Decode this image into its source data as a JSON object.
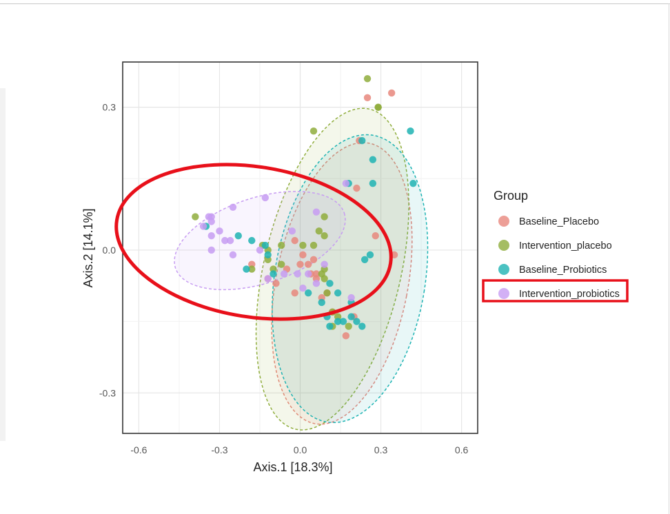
{
  "chart_data": {
    "type": "scatter",
    "title": "",
    "xlabel": "Axis.1   [18.3%]",
    "ylabel": "Axis.2   [14.1%]",
    "xlim": [
      -0.66,
      0.66
    ],
    "ylim": [
      -0.385,
      0.395
    ],
    "xticks": [
      -0.6,
      -0.3,
      0.0,
      0.3,
      0.6
    ],
    "xtick_labels": [
      "-0.6",
      "-0.3",
      "0.0",
      "0.3",
      "0.6"
    ],
    "yticks": [
      -0.3,
      0.0,
      0.3
    ],
    "ytick_labels": [
      "-0.3",
      "0.0",
      "0.3"
    ],
    "grid": true,
    "legend": {
      "title": "Group",
      "placement": "right",
      "highlighted": "Intervention_probiotics"
    },
    "series": [
      {
        "name": "Baseline_Placebo",
        "color": "#e8877d",
        "ellipse": {
          "cx": 0.155,
          "cy": -0.07,
          "rx": 0.245,
          "ry": 0.3,
          "angle_deg": 11
        },
        "points": [
          [
            0.25,
            0.32
          ],
          [
            0.34,
            0.33
          ],
          [
            0.22,
            0.23
          ],
          [
            0.21,
            0.13
          ],
          [
            0.28,
            0.03
          ],
          [
            0.35,
            -0.01
          ],
          [
            0.05,
            -0.02
          ],
          [
            0.01,
            -0.01
          ],
          [
            -0.02,
            0.02
          ],
          [
            0.04,
            -0.05
          ],
          [
            -0.18,
            -0.03
          ],
          [
            -0.12,
            -0.06
          ],
          [
            -0.09,
            -0.07
          ],
          [
            0.0,
            -0.03
          ],
          [
            0.03,
            -0.03
          ],
          [
            0.06,
            -0.05
          ],
          [
            -0.05,
            -0.04
          ],
          [
            0.1,
            -0.09
          ],
          [
            0.08,
            -0.1
          ],
          [
            0.2,
            -0.14
          ],
          [
            0.17,
            -0.18
          ],
          [
            -0.02,
            -0.09
          ],
          [
            0.12,
            -0.13
          ],
          [
            0.06,
            -0.06
          ]
        ]
      },
      {
        "name": "Intervention_placebo",
        "color": "#8fad3c",
        "ellipse": {
          "cx": 0.12,
          "cy": -0.04,
          "rx": 0.255,
          "ry": 0.345,
          "angle_deg": 13
        },
        "points": [
          [
            0.25,
            0.36
          ],
          [
            0.29,
            0.3
          ],
          [
            0.29,
            0.3
          ],
          [
            0.05,
            0.25
          ],
          [
            -0.39,
            0.07
          ],
          [
            0.07,
            0.04
          ],
          [
            0.09,
            0.07
          ],
          [
            0.09,
            0.03
          ],
          [
            0.05,
            0.01
          ],
          [
            0.01,
            0.01
          ],
          [
            -0.07,
            0.01
          ],
          [
            -0.12,
            0.0
          ],
          [
            -0.14,
            0.01
          ],
          [
            -0.12,
            -0.02
          ],
          [
            -0.07,
            -0.03
          ],
          [
            -0.1,
            -0.04
          ],
          [
            -0.18,
            -0.04
          ],
          [
            0.09,
            -0.04
          ],
          [
            0.08,
            -0.05
          ],
          [
            0.09,
            -0.06
          ],
          [
            0.1,
            -0.09
          ],
          [
            0.12,
            -0.13
          ],
          [
            0.14,
            -0.14
          ],
          [
            0.12,
            -0.16
          ],
          [
            0.18,
            -0.16
          ]
        ]
      },
      {
        "name": "Baseline_Probiotics",
        "color": "#1eb3b3",
        "ellipse": {
          "cx": 0.185,
          "cy": -0.06,
          "rx": 0.28,
          "ry": 0.305,
          "angle_deg": 9
        },
        "points": [
          [
            0.41,
            0.25
          ],
          [
            0.23,
            0.23
          ],
          [
            0.27,
            0.19
          ],
          [
            0.18,
            0.14
          ],
          [
            0.42,
            0.14
          ],
          [
            0.27,
            0.14
          ],
          [
            0.26,
            -0.01
          ],
          [
            0.24,
            -0.02
          ],
          [
            -0.18,
            0.02
          ],
          [
            -0.13,
            0.01
          ],
          [
            -0.12,
            -0.01
          ],
          [
            0.11,
            -0.07
          ],
          [
            0.14,
            -0.09
          ],
          [
            0.19,
            -0.11
          ],
          [
            0.08,
            -0.11
          ],
          [
            0.03,
            -0.09
          ],
          [
            0.1,
            -0.14
          ],
          [
            0.14,
            -0.15
          ],
          [
            0.16,
            -0.15
          ],
          [
            0.19,
            -0.14
          ],
          [
            0.23,
            -0.16
          ],
          [
            0.21,
            -0.15
          ],
          [
            0.11,
            -0.16
          ],
          [
            -0.1,
            -0.05
          ],
          [
            -0.2,
            -0.04
          ],
          [
            -0.35,
            0.05
          ],
          [
            -0.23,
            0.03
          ]
        ]
      },
      {
        "name": "Intervention_probiotics",
        "color": "#c79cf2",
        "ellipse": {
          "cx": -0.15,
          "cy": 0.02,
          "rx": 0.33,
          "ry": 0.09,
          "angle_deg": -18
        },
        "points": [
          [
            -0.13,
            0.11
          ],
          [
            -0.25,
            0.09
          ],
          [
            -0.33,
            0.07
          ],
          [
            -0.34,
            0.07
          ],
          [
            -0.33,
            0.06
          ],
          [
            -0.36,
            0.05
          ],
          [
            -0.3,
            0.04
          ],
          [
            -0.28,
            0.02
          ],
          [
            -0.26,
            0.02
          ],
          [
            -0.33,
            0.0
          ],
          [
            -0.25,
            -0.01
          ],
          [
            -0.15,
            0.0
          ],
          [
            -0.12,
            -0.06
          ],
          [
            -0.06,
            -0.05
          ],
          [
            -0.01,
            -0.05
          ],
          [
            0.01,
            -0.08
          ],
          [
            0.03,
            -0.05
          ],
          [
            0.06,
            -0.07
          ],
          [
            0.09,
            -0.03
          ],
          [
            0.19,
            -0.1
          ],
          [
            0.17,
            0.14
          ],
          [
            0.06,
            0.08
          ],
          [
            -0.03,
            0.04
          ],
          [
            -0.33,
            0.03
          ]
        ]
      }
    ]
  }
}
